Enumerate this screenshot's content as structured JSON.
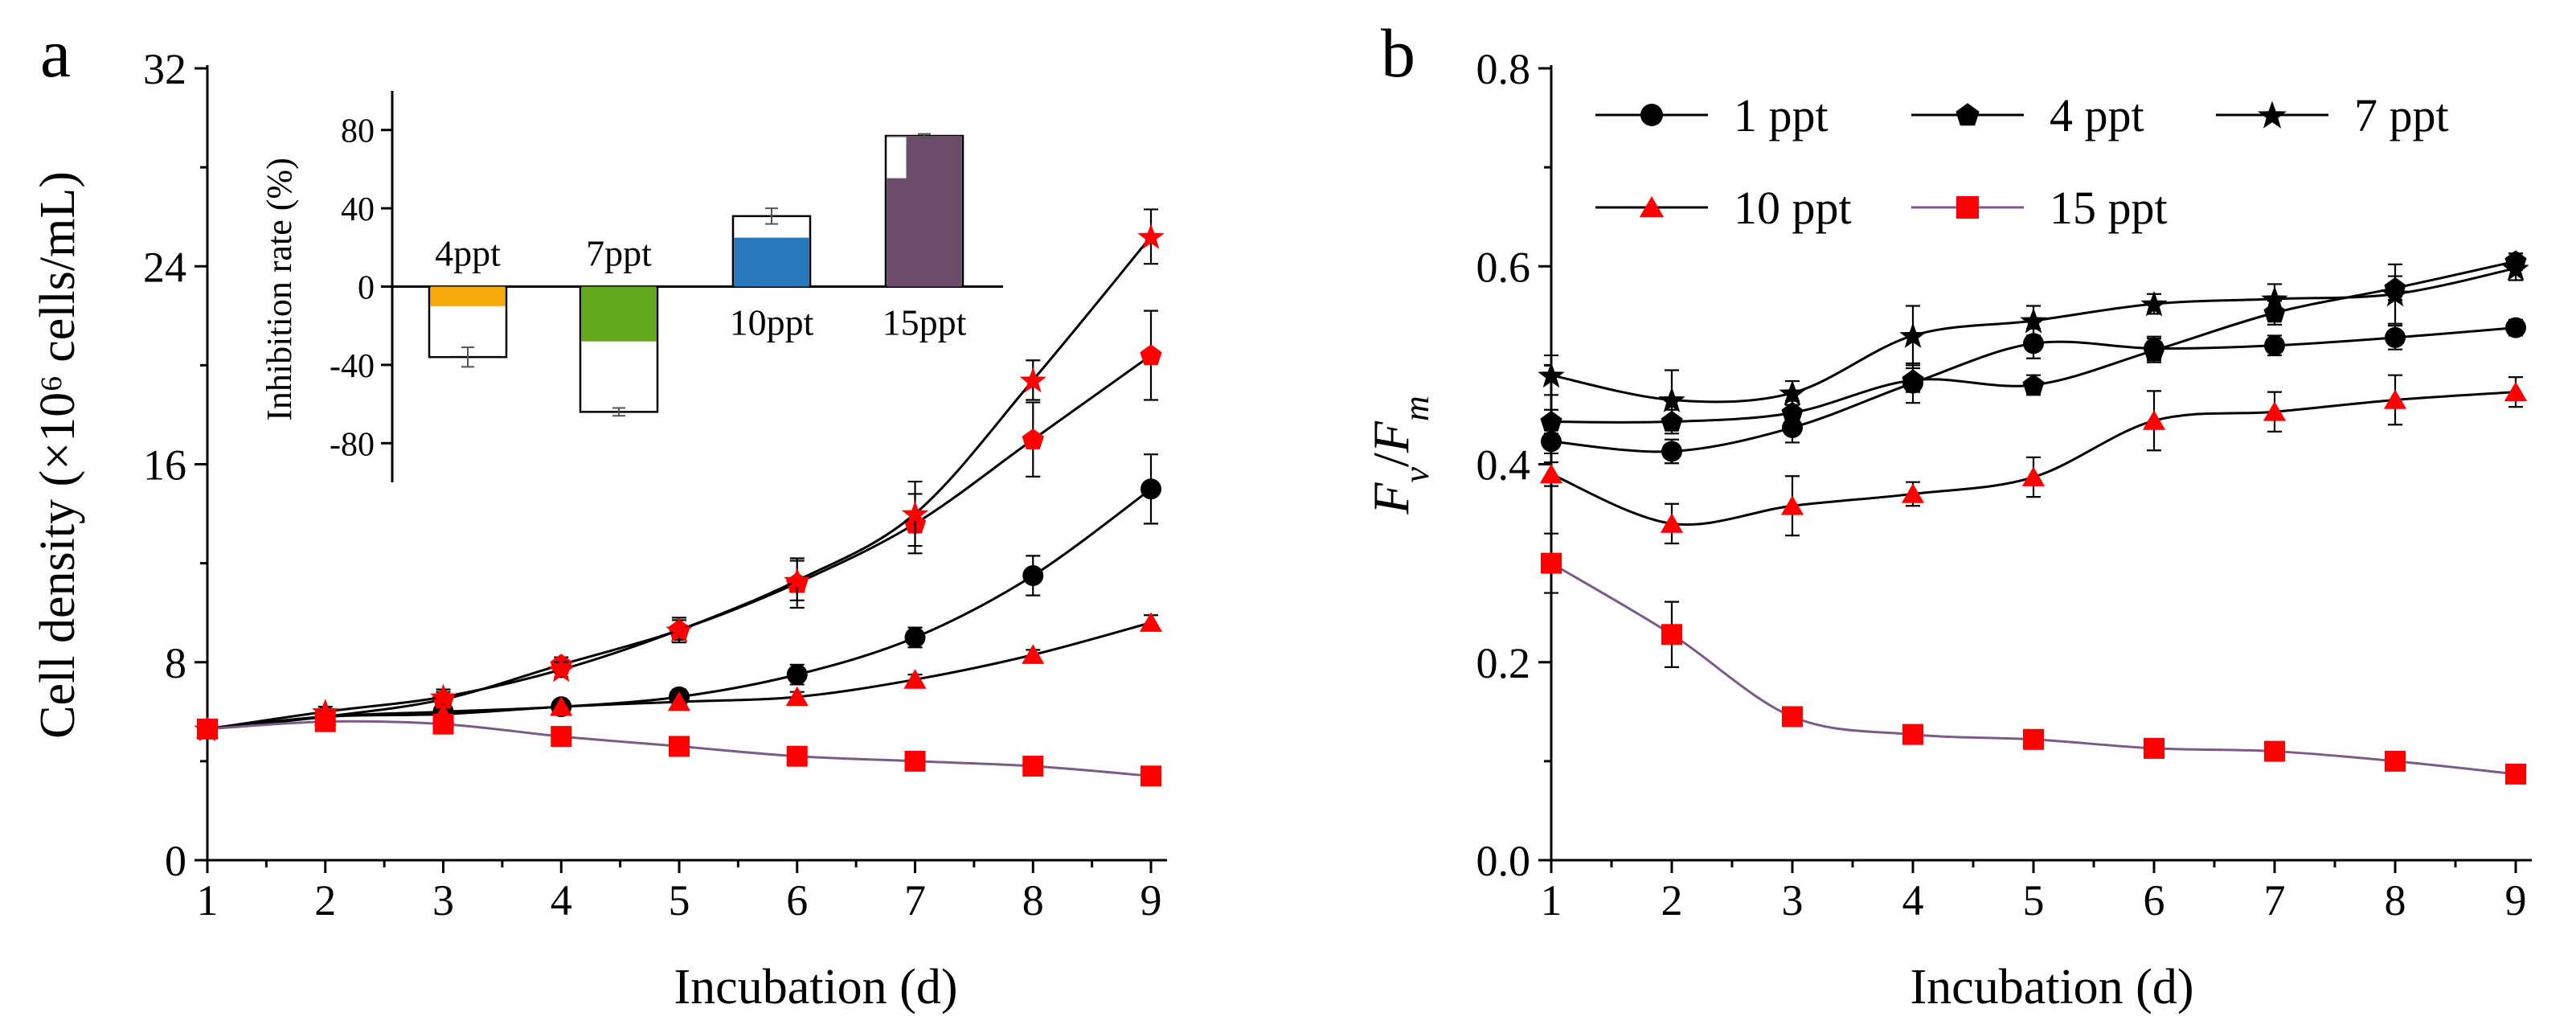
{
  "chart_data": [
    {
      "panel_label": "a",
      "type": "line",
      "xlabel": "Incubation (d)",
      "ylabel": "Cell density (×10⁶ cells/mL)",
      "xlim": [
        1,
        9
      ],
      "ylim": [
        0,
        32
      ],
      "x_ticks": [
        1,
        2,
        3,
        4,
        5,
        6,
        7,
        8,
        9
      ],
      "y_ticks": [
        0,
        8,
        16,
        24,
        32
      ],
      "x": [
        1,
        2,
        3,
        4,
        5,
        6,
        7,
        8,
        9
      ],
      "series": [
        {
          "name": "1 ppt",
          "marker": "circle",
          "color": "#000000",
          "line": "#000000",
          "values": [
            5.3,
            5.8,
            6.0,
            6.2,
            6.6,
            7.5,
            9.0,
            11.5,
            15.0
          ],
          "err": [
            0.2,
            0.2,
            0.2,
            0.2,
            0.3,
            0.4,
            0.4,
            0.8,
            1.4
          ]
        },
        {
          "name": "4 ppt",
          "marker": "pentagon",
          "color": "#ff0000",
          "line": "#000000",
          "values": [
            5.3,
            5.8,
            6.5,
            7.9,
            9.3,
            11.2,
            13.6,
            17.0,
            20.4
          ],
          "err": [
            0.2,
            0.2,
            0.3,
            0.3,
            0.5,
            1.0,
            1.2,
            1.5,
            1.8
          ]
        },
        {
          "name": "7 ppt",
          "marker": "star",
          "color": "#ff0000",
          "line": "#000000",
          "values": [
            5.3,
            6.0,
            6.6,
            7.7,
            9.3,
            11.3,
            14.0,
            19.4,
            25.2
          ],
          "err": [
            0.2,
            0.2,
            0.3,
            0.3,
            0.4,
            0.8,
            1.3,
            0.8,
            1.1
          ]
        },
        {
          "name": "10 ppt",
          "marker": "triangle",
          "color": "#ff0000",
          "line": "#000000",
          "values": [
            5.3,
            5.8,
            5.9,
            6.2,
            6.4,
            6.6,
            7.3,
            8.3,
            9.6
          ],
          "err": [
            0.2,
            0.2,
            0.2,
            0.2,
            0.2,
            0.2,
            0.2,
            0.2,
            0.3
          ]
        },
        {
          "name": "15 ppt",
          "marker": "square",
          "color": "#ff0000",
          "line": "#7b5a8a",
          "values": [
            5.3,
            5.6,
            5.5,
            5.0,
            4.6,
            4.2,
            4.0,
            3.8,
            3.4
          ],
          "err": [
            0.2,
            0.2,
            0.2,
            0.2,
            0.2,
            0.2,
            0.2,
            0.2,
            0.2
          ]
        }
      ],
      "inset": {
        "type": "bar",
        "ylabel": "Inhibition rate (%)",
        "ylim": [
          -100,
          100
        ],
        "y_ticks": [
          -80,
          -40,
          0,
          40,
          80
        ],
        "categories": [
          "4ppt",
          "7ppt",
          "10ppt",
          "15ppt"
        ],
        "colors": [
          "#f5a90a",
          "#64a81d",
          "#2878bd",
          "#6b4d6b"
        ],
        "filled_values": [
          -10,
          -28,
          25,
          77
        ],
        "outline_values": [
          -36,
          -64,
          36,
          77
        ],
        "err": [
          5,
          2,
          4,
          1
        ]
      }
    },
    {
      "panel_label": "b",
      "type": "line",
      "xlabel": "Incubation (d)",
      "ylabel_main": "F",
      "ylabel_sub1": "v",
      "ylabel_sep": "/",
      "ylabel_sub2": "m",
      "xlim": [
        1,
        9
      ],
      "ylim": [
        0.0,
        0.8
      ],
      "x_ticks": [
        1,
        2,
        3,
        4,
        5,
        6,
        7,
        8,
        9
      ],
      "y_ticks": [
        "0.0",
        "0.2",
        "0.4",
        "0.6",
        "0.8"
      ],
      "x": [
        1,
        2,
        3,
        4,
        5,
        6,
        7,
        8,
        9
      ],
      "legend_position": "top-left",
      "series": [
        {
          "name": "1 ppt",
          "marker": "circle",
          "color": "#000000",
          "line": "#000000",
          "values": [
            0.423,
            0.413,
            0.437,
            0.482,
            0.522,
            0.517,
            0.52,
            0.528,
            0.538
          ],
          "err": [
            0.012,
            0.012,
            0.015,
            0.02,
            0.015,
            0.012,
            0.01,
            0.012,
            0.008
          ]
        },
        {
          "name": "4 ppt",
          "marker": "pentagon",
          "color": "#000000",
          "line": "#000000",
          "values": [
            0.443,
            0.443,
            0.452,
            0.485,
            0.48,
            0.515,
            0.553,
            0.578,
            0.605
          ],
          "err": [
            0.012,
            0.012,
            0.012,
            0.012,
            0.01,
            0.012,
            0.012,
            0.012,
            0.008
          ]
        },
        {
          "name": "7 ppt",
          "marker": "star",
          "color": "#000000",
          "line": "#000000",
          "values": [
            0.49,
            0.465,
            0.472,
            0.53,
            0.545,
            0.562,
            0.567,
            0.572,
            0.598
          ],
          "err": [
            0.02,
            0.03,
            0.012,
            0.03,
            0.015,
            0.01,
            0.015,
            0.03,
            0.012
          ]
        },
        {
          "name": "10 ppt",
          "marker": "triangle",
          "color": "#ff0000",
          "line": "#000000",
          "values": [
            0.39,
            0.34,
            0.358,
            0.37,
            0.387,
            0.444,
            0.453,
            0.465,
            0.473
          ],
          "err": [
            0.012,
            0.02,
            0.03,
            0.012,
            0.02,
            0.03,
            0.02,
            0.025,
            0.015
          ]
        },
        {
          "name": "15 ppt",
          "marker": "square",
          "color": "#ff0000",
          "line": "#7b5a8a",
          "values": [
            0.3,
            0.228,
            0.145,
            0.127,
            0.122,
            0.113,
            0.11,
            0.1,
            0.087
          ],
          "err": [
            0.03,
            0.033,
            0.008,
            0.008,
            0.008,
            0.008,
            0.008,
            0.006,
            0.006
          ]
        }
      ]
    }
  ]
}
